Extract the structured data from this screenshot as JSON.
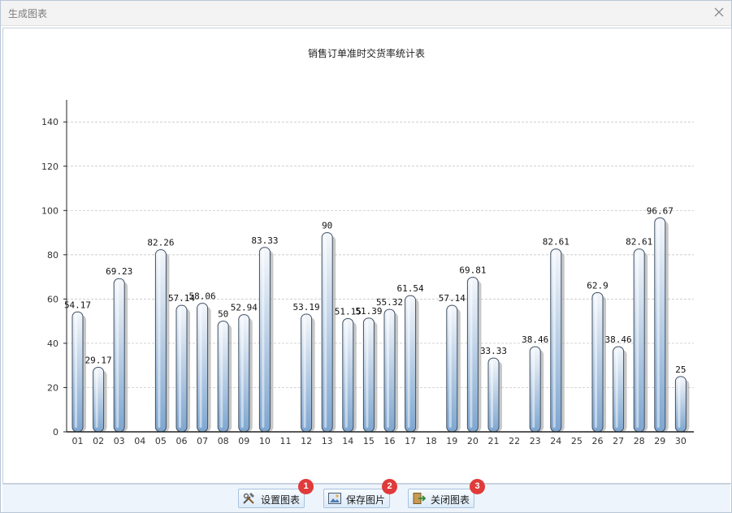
{
  "window": {
    "title": "生成图表"
  },
  "footer": {
    "buttons": [
      {
        "label": "设置图表",
        "icon": "tools-icon",
        "badge": "1"
      },
      {
        "label": "保存图片",
        "icon": "picture-icon",
        "badge": "2"
      },
      {
        "label": "关闭图表",
        "icon": "exit-icon",
        "badge": "3"
      }
    ]
  },
  "chart_data": {
    "type": "bar",
    "title": "销售订单准时交货率统计表",
    "xlabel": "",
    "ylabel": "",
    "ylim": [
      0,
      150
    ],
    "yticks": [
      0,
      20,
      40,
      60,
      80,
      100,
      120,
      140
    ],
    "grid": "horizontal dashed",
    "categories": [
      "01",
      "02",
      "03",
      "04",
      "05",
      "06",
      "07",
      "08",
      "09",
      "10",
      "11",
      "12",
      "13",
      "14",
      "15",
      "16",
      "17",
      "18",
      "19",
      "20",
      "21",
      "22",
      "23",
      "24",
      "25",
      "26",
      "27",
      "28",
      "29",
      "30"
    ],
    "values": [
      54.17,
      29.17,
      69.23,
      null,
      82.26,
      57.14,
      58.06,
      50,
      52.94,
      83.33,
      null,
      53.19,
      90,
      51.15,
      51.39,
      55.32,
      61.54,
      null,
      57.14,
      69.81,
      33.33,
      null,
      38.46,
      82.61,
      null,
      62.9,
      38.46,
      82.61,
      96.67,
      25
    ],
    "labels": [
      "54.17",
      "29.17",
      "69.23",
      "",
      "82.26",
      "57.14",
      "58.06",
      "50",
      "52.94",
      "83.33",
      "",
      "53.19",
      "90",
      "51.15",
      "51.39",
      "55.32",
      "61.54",
      "",
      "57.14",
      "69.81",
      "33.33",
      "",
      "38.46",
      "82.61",
      "",
      "62.9",
      "38.46",
      "82.61",
      "96.67",
      "25"
    ],
    "colors": {
      "bar_top": "#f4f7fb",
      "bar_bottom": "#7ea6d0",
      "bar_stroke": "#3f4f63",
      "shadow": "#9a9a9a",
      "grid": "#bdbdbd",
      "axis": "#222222"
    }
  }
}
